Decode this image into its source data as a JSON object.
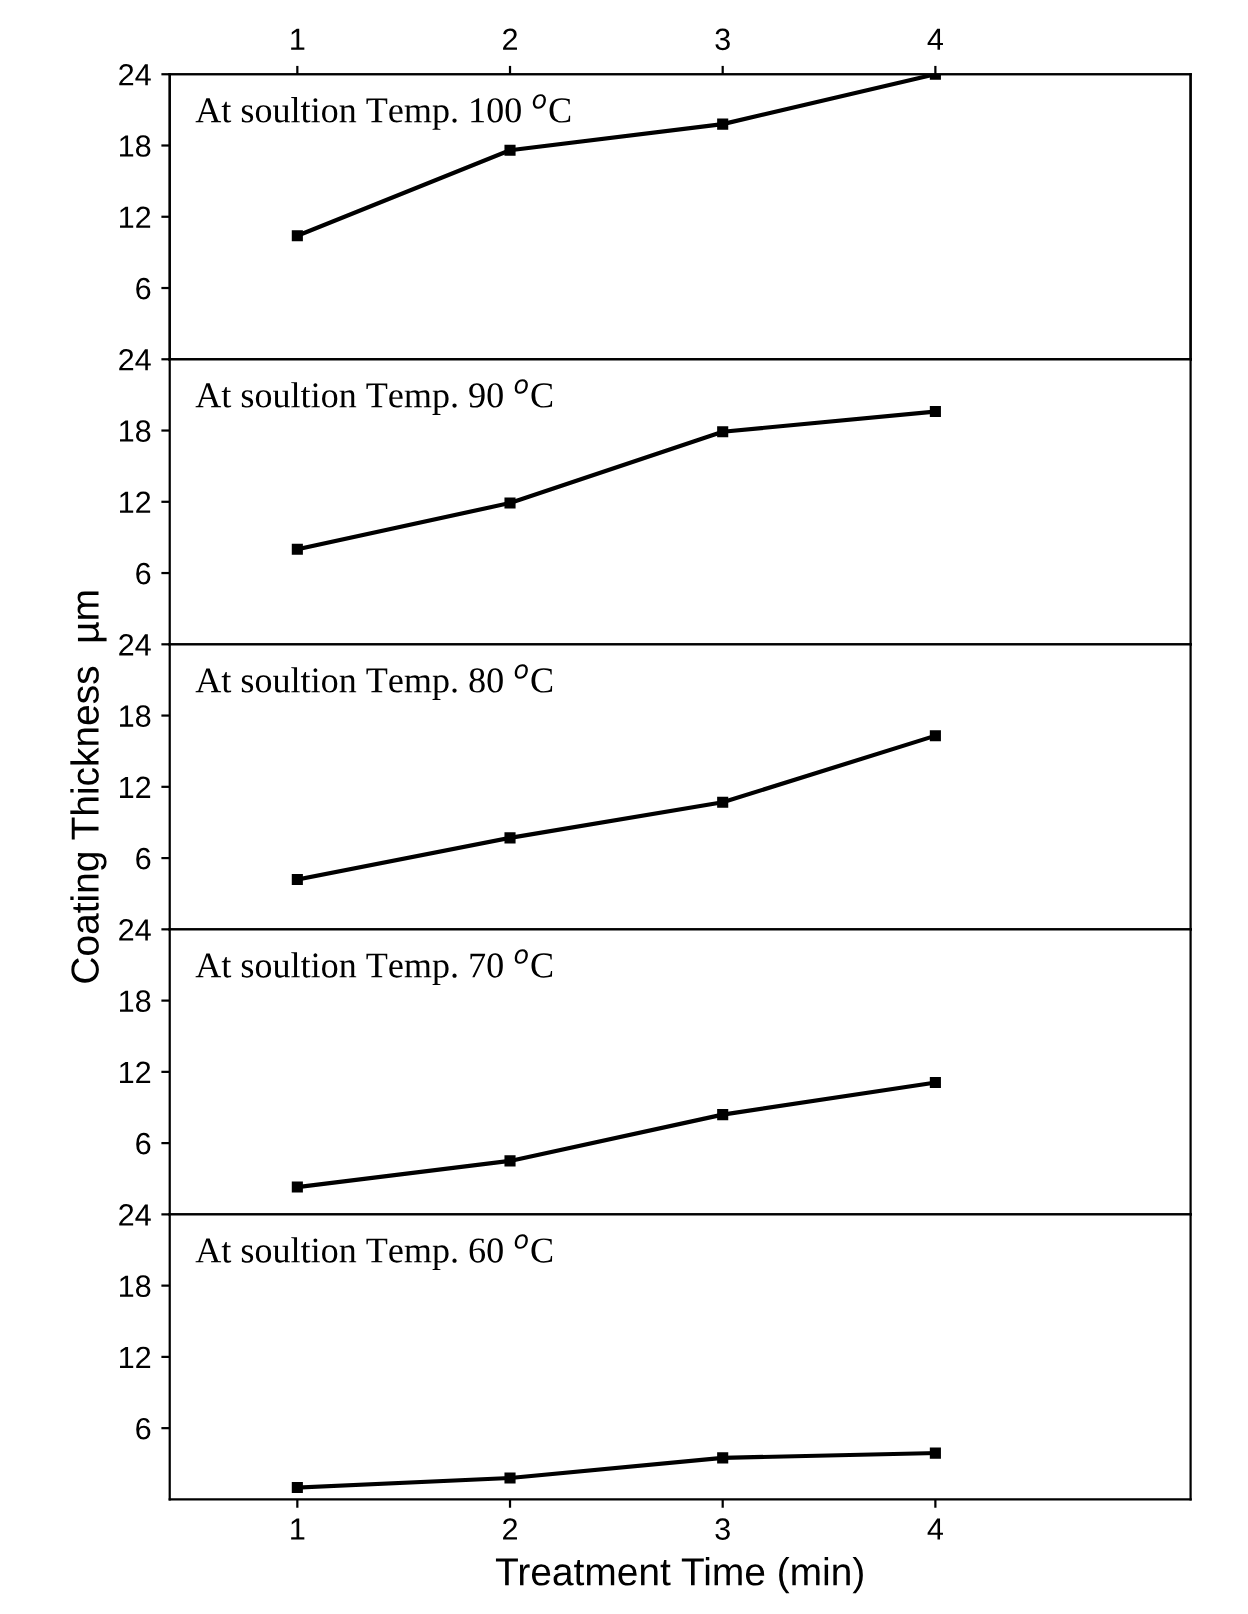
{
  "chart_data": [
    {
      "type": "line",
      "title": "At soultion Temp. 100 $^{o}$C",
      "x": [
        1,
        2,
        3,
        4
      ],
      "series": [
        {
          "color": "#000000",
          "values": [
            10.4,
            17.6,
            19.8,
            24
          ]
        }
      ],
      "xlim": [
        0.4,
        5.2
      ],
      "x2lim": [
        0.4,
        5.2
      ],
      "x2ticks": [
        1,
        2,
        3,
        4
      ],
      "ylim": [
        0,
        24
      ],
      "yticks": [
        6,
        12,
        18,
        24
      ],
      "tick_labels": "y",
      "marker": "square",
      "line_style": "solid",
      "grid": false,
      "legend": false
    },
    {
      "type": "line",
      "title": "At soultion Temp. 90 $^{o}$C",
      "x": [
        1,
        2,
        3,
        4
      ],
      "series": [
        {
          "color": "#000000",
          "values": [
            8.0,
            11.9,
            17.9,
            19.6
          ]
        }
      ],
      "xlim": [
        0.4,
        5.2
      ],
      "ylim": [
        0,
        24
      ],
      "yticks": [
        6,
        12,
        18,
        24
      ],
      "tick_labels": "y",
      "marker": "square",
      "line_style": "solid",
      "grid": false,
      "legend": false
    },
    {
      "type": "line",
      "title": "At soultion Temp. 80 $^{o}$C",
      "ylabel": "Coating Thickness  µm",
      "x": [
        1,
        2,
        3,
        4
      ],
      "series": [
        {
          "color": "#000000",
          "values": [
            4.2,
            7.7,
            10.7,
            16.3
          ]
        }
      ],
      "xlim": [
        0.4,
        5.2
      ],
      "ylim": [
        0,
        24
      ],
      "yticks": [
        6,
        12,
        18,
        24
      ],
      "tick_labels": "y",
      "marker": "square",
      "line_style": "solid",
      "grid": false,
      "legend": false
    },
    {
      "type": "line",
      "title": "At soultion Temp. 70 $^{o}$C",
      "x": [
        1,
        2,
        3,
        4
      ],
      "series": [
        {
          "color": "#000000",
          "values": [
            2.3,
            4.5,
            8.4,
            11.1
          ]
        }
      ],
      "xlim": [
        0.4,
        5.2
      ],
      "ylim": [
        0,
        24
      ],
      "yticks": [
        6,
        12,
        18,
        24
      ],
      "tick_labels": "y",
      "marker": "square",
      "line_style": "solid",
      "grid": false,
      "legend": false
    },
    {
      "type": "line",
      "title": "At soultion Temp. 60 $^{o}$C",
      "xlabel": "Treatment Time (min)",
      "x": [
        1,
        2,
        3,
        4
      ],
      "series": [
        {
          "color": "#000000",
          "values": [
            1.0,
            1.8,
            3.5,
            3.9
          ]
        }
      ],
      "xlim": [
        0.4,
        5.2
      ],
      "xticks": [
        1,
        2,
        3,
        4
      ],
      "ylim": [
        0,
        24
      ],
      "yticks": [
        6,
        12,
        18,
        24
      ],
      "marker": "square",
      "line_style": "solid",
      "grid": false,
      "legend": false
    }
  ]
}
